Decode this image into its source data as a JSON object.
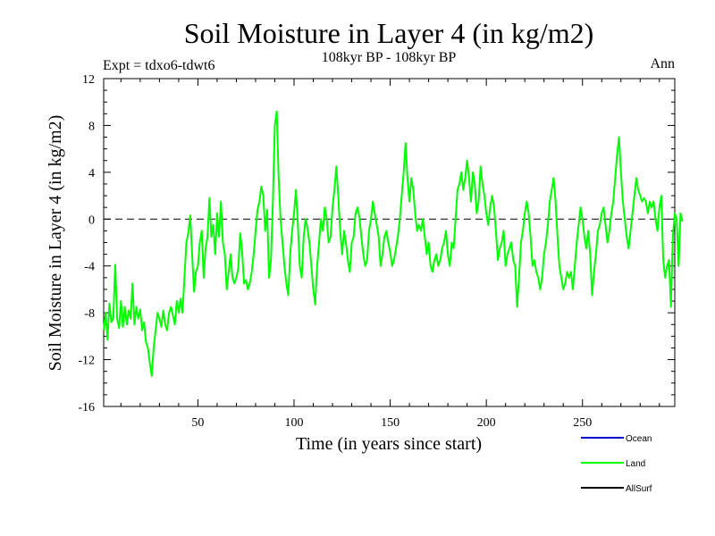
{
  "chart_data": {
    "type": "line",
    "title": "Soil Moisture in Layer 4 (in kg/m2)",
    "subtitle": "108kyr BP - 108kyr BP",
    "experiment_label": "Expt = tdxo6-tdwt6",
    "period_label": "Ann",
    "xlabel": "Time (in years since start)",
    "ylabel": "Soil Moisture in Layer 4 (in kg/m2)",
    "xlim": [
      1,
      298
    ],
    "ylim": [
      -16,
      12
    ],
    "x_ticks": [
      50,
      100,
      150,
      200,
      250
    ],
    "y_ticks": [
      -16,
      -12,
      -8,
      -4,
      0,
      4,
      8,
      12
    ],
    "zero_line": true,
    "grid": false,
    "legend": {
      "placement": "bottom-right",
      "entries": [
        {
          "label": "Ocean",
          "color": "#0000cc"
        },
        {
          "label": "Land",
          "color": "#00ff00"
        },
        {
          "label": "AllSurf",
          "color": "#000000"
        }
      ]
    },
    "series": [
      {
        "name": "Land",
        "color": "#00ff00",
        "x_start": 1,
        "x_step": 1,
        "values": [
          -9.5,
          -8.0,
          -10.3,
          -7.2,
          -8.8,
          -8.5,
          -3.9,
          -8.5,
          -9.3,
          -7.0,
          -9.2,
          -7.5,
          -9.0,
          -7.8,
          -8.5,
          -5.5,
          -9.0,
          -7.5,
          -8.5,
          -7.7,
          -9.5,
          -8.8,
          -10.5,
          -11.0,
          -12.3,
          -13.4,
          -11.0,
          -9.5,
          -8.0,
          -8.5,
          -9.2,
          -7.8,
          -9.0,
          -9.5,
          -8.0,
          -7.5,
          -8.2,
          -9.0,
          -7.0,
          -8.0,
          -6.8,
          -8.0,
          -5.0,
          -2.0,
          -1.2,
          0.3,
          -3.0,
          -6.2,
          -4.5,
          -4.0,
          -2.0,
          -1.0,
          -5.0,
          -2.5,
          -1.5,
          1.8,
          -1.5,
          -0.5,
          -3.0,
          0.5,
          -1.5,
          1.5,
          -2.0,
          -3.0,
          -6.0,
          -4.5,
          -3.0,
          -5.0,
          -5.5,
          -5.0,
          -4.2,
          -1.2,
          -2.8,
          -5.5,
          -5.2,
          -6.0,
          -5.5,
          -4.5,
          -3.0,
          -1.0,
          0.8,
          1.5,
          2.8,
          2.0,
          -1.0,
          0.8,
          -5.0,
          -3.5,
          1.5,
          8.0,
          9.2,
          3.5,
          0.0,
          -2.0,
          -4.0,
          -5.5,
          -6.5,
          -3.0,
          -1.0,
          0.5,
          2.5,
          -0.5,
          -4.0,
          -5.0,
          -1.5,
          0.0,
          -0.8,
          -2.0,
          -4.0,
          -6.0,
          -7.3,
          -4.0,
          -2.0,
          0.0,
          -1.0,
          1.0,
          0.0,
          -2.0,
          -1.5,
          1.0,
          2.5,
          4.5,
          2.0,
          -1.0,
          -3.0,
          -1.0,
          -2.0,
          -3.5,
          -4.5,
          -2.0,
          -1.5,
          0.5,
          1.0,
          0.2,
          -1.5,
          -3.0,
          -4.0,
          -3.5,
          -1.0,
          0.0,
          1.5,
          0.5,
          -0.5,
          -1.5,
          -4.0,
          -3.0,
          -1.5,
          -1.0,
          -2.0,
          -2.8,
          -4.0,
          -3.5,
          -2.5,
          -1.5,
          0.0,
          2.0,
          4.0,
          6.5,
          3.5,
          1.5,
          3.5,
          2.5,
          0.5,
          -1.0,
          -0.5,
          -1.0,
          0.0,
          -1.5,
          -3.0,
          -2.0,
          -4.0,
          -4.5,
          -3.5,
          -3.0,
          -4.0,
          -3.5,
          -2.5,
          -2.0,
          -1.0,
          -3.0,
          -4.0,
          -2.0,
          -2.5,
          0.0,
          2.5,
          3.0,
          4.0,
          2.5,
          3.5,
          5.0,
          3.5,
          1.5,
          4.0,
          3.0,
          0.5,
          1.5,
          4.5,
          3.0,
          2.0,
          0.5,
          -0.5,
          1.0,
          2.0,
          1.0,
          -1.0,
          -3.5,
          -2.5,
          -2.0,
          -1.0,
          -4.0,
          -3.0,
          -2.5,
          -2.0,
          -3.5,
          -4.0,
          -7.5,
          -5.0,
          -2.0,
          -1.0,
          0.5,
          1.5,
          0.5,
          -1.5,
          -4.0,
          -3.5,
          -4.5,
          -5.0,
          -6.0,
          -5.0,
          -3.0,
          -2.0,
          -0.5,
          1.5,
          2.5,
          3.5,
          1.5,
          -1.5,
          -4.0,
          -5.0,
          -6.0,
          -5.5,
          -4.5,
          -5.0,
          -4.5,
          -6.0,
          -4.0,
          -2.0,
          -0.5,
          1.0,
          0.0,
          -1.5,
          -2.5,
          -1.0,
          -3.0,
          -6.5,
          -4.5,
          -3.0,
          -1.0,
          -0.5,
          0.5,
          1.0,
          -0.5,
          -2.0,
          -1.0,
          0.5,
          1.5,
          3.5,
          5.5,
          7.0,
          4.0,
          1.5,
          0.0,
          -1.5,
          -2.5,
          -1.0,
          0.5,
          2.0,
          3.5,
          2.5,
          2.0,
          1.5,
          1.8,
          1.5,
          0.5,
          1.5,
          1.0,
          1.5,
          0.0,
          -1.0,
          1.0,
          2.0,
          -3.5,
          -5.0,
          -4.0,
          -3.5,
          -7.5,
          -1.5,
          0.5,
          0.0,
          -4.0,
          0.5,
          -0.2
        ]
      },
      {
        "name": "Zero reference",
        "values": [
          0
        ]
      }
    ]
  }
}
